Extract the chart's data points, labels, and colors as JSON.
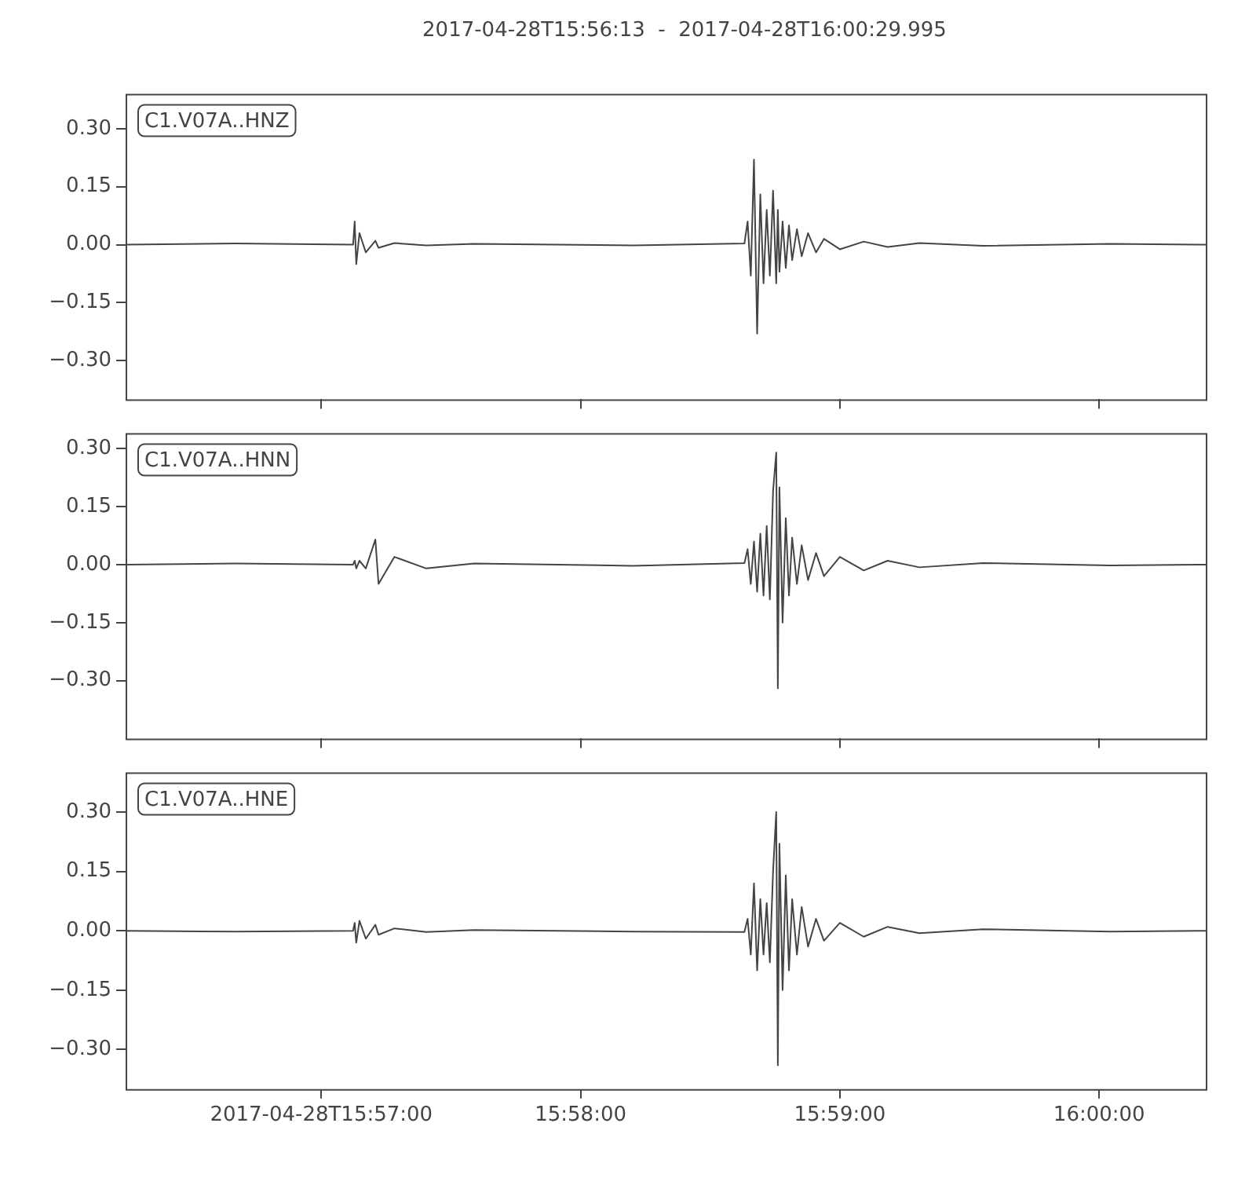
{
  "chart_data": [
    {
      "type": "line",
      "title": "2017-04-28T15:56:13  -  2017-04-28T16:00:29.995",
      "legend": "top left",
      "tick_labels": "y",
      "grid": false,
      "x": [
        15.937423,
        15.944479,
        15.952045,
        15.952147,
        15.952249,
        15.952454,
        15.952863,
        15.953476,
        15.953681,
        15.954703,
        15.956748,
        15.959816,
        15.970041,
        15.977198,
        15.977403,
        15.977607,
        15.977812,
        15.978016,
        15.978221,
        15.978425,
        15.97863,
        15.978834,
        15.979039,
        15.979243,
        15.979346,
        15.979448,
        15.979652,
        15.979857,
        15.980061,
        15.980266,
        15.980573,
        15.980879,
        15.981288,
        15.9818,
        15.982311,
        15.983333,
        15.984867,
        15.986401,
        15.988446,
        15.992536,
        16.000716,
        16.006851
      ],
      "xlim": [
        15.937423,
        16.006851
      ],
      "xticks": [
        {
          "value": 15.95,
          "label": null
        },
        {
          "value": 15.966667,
          "label": null
        },
        {
          "value": 15.983333,
          "label": null
        },
        {
          "value": 16.0,
          "label": null
        }
      ],
      "ylim": [
        -0.4,
        0.39
      ],
      "yticks": [
        {
          "value": -0.3,
          "label": "−0.30"
        },
        {
          "value": -0.15,
          "label": "−0.15"
        },
        {
          "value": 0,
          "label": "0.00"
        },
        {
          "value": 0.15,
          "label": "0.15"
        },
        {
          "value": 0.3,
          "label": "0.30"
        }
      ],
      "series": [
        {
          "name": "C1.V07A..HNZ",
          "color": "#444444",
          "values": [
            0,
            0.003,
            0,
            0.06,
            -0.05,
            0.03,
            -0.02,
            0.01,
            -0.008,
            0.004,
            -0.002,
            0.002,
            -0.002,
            0.003,
            0.06,
            -0.08,
            0.22,
            -0.23,
            0.13,
            -0.1,
            0.09,
            -0.08,
            0.14,
            -0.1,
            0.09,
            -0.07,
            0.06,
            -0.06,
            0.05,
            -0.04,
            0.04,
            -0.03,
            0.03,
            -0.02,
            0.015,
            -0.012,
            0.008,
            -0.006,
            0.004,
            -0.003,
            0.002,
            0
          ]
        }
      ]
    },
    {
      "type": "line",
      "legend": "top left",
      "tick_labels": "y",
      "grid": false,
      "x": [
        15.937423,
        15.944479,
        15.952045,
        15.952147,
        15.952249,
        15.952454,
        15.952863,
        15.953476,
        15.953681,
        15.954703,
        15.956748,
        15.959816,
        15.970041,
        15.977198,
        15.977403,
        15.977607,
        15.977812,
        15.978016,
        15.978221,
        15.978425,
        15.97863,
        15.978834,
        15.979039,
        15.979243,
        15.979346,
        15.979448,
        15.979652,
        15.979857,
        15.980061,
        15.980266,
        15.980573,
        15.980879,
        15.981288,
        15.9818,
        15.982311,
        15.983333,
        15.984867,
        15.986401,
        15.988446,
        15.992536,
        16.000716,
        16.006851
      ],
      "xlim": [
        15.937423,
        16.006851
      ],
      "xticks": [
        {
          "value": 15.95,
          "label": null
        },
        {
          "value": 15.966667,
          "label": null
        },
        {
          "value": 15.983333,
          "label": null
        },
        {
          "value": 16.0,
          "label": null
        }
      ],
      "ylim": [
        -0.45,
        0.34
      ],
      "yticks": [
        {
          "value": -0.3,
          "label": "−0.30"
        },
        {
          "value": -0.15,
          "label": "−0.15"
        },
        {
          "value": 0,
          "label": "0.00"
        },
        {
          "value": 0.15,
          "label": "0.15"
        },
        {
          "value": 0.3,
          "label": "0.30"
        }
      ],
      "series": [
        {
          "name": "C1.V07A..HNN",
          "color": "#444444",
          "values": [
            0,
            0.003,
            0,
            0.01,
            -0.01,
            0.01,
            -0.01,
            0.065,
            -0.05,
            0.02,
            -0.01,
            0.003,
            -0.003,
            0.004,
            0.04,
            -0.05,
            0.06,
            -0.07,
            0.08,
            -0.08,
            0.1,
            -0.09,
            0.19,
            0.29,
            -0.32,
            0.2,
            -0.15,
            0.12,
            -0.08,
            0.07,
            -0.05,
            0.05,
            -0.04,
            0.03,
            -0.03,
            0.02,
            -0.015,
            0.01,
            -0.007,
            0.004,
            -0.002,
            0
          ]
        }
      ]
    },
    {
      "type": "line",
      "legend": "top left",
      "grid": false,
      "x": [
        15.937423,
        15.944479,
        15.952045,
        15.952147,
        15.952249,
        15.952454,
        15.952863,
        15.953476,
        15.953681,
        15.954703,
        15.956748,
        15.959816,
        15.970041,
        15.977198,
        15.977403,
        15.977607,
        15.977812,
        15.978016,
        15.978221,
        15.978425,
        15.97863,
        15.978834,
        15.979039,
        15.979243,
        15.979346,
        15.979448,
        15.979652,
        15.979857,
        15.980061,
        15.980266,
        15.980573,
        15.980879,
        15.981288,
        15.9818,
        15.982311,
        15.983333,
        15.984867,
        15.986401,
        15.988446,
        15.992536,
        16.000716,
        16.006851
      ],
      "xlim": [
        15.937423,
        16.006851
      ],
      "xticks": [
        {
          "value": 15.95,
          "label": "2017-04-28T15:57:00"
        },
        {
          "value": 15.966667,
          "label": "15:58:00"
        },
        {
          "value": 15.983333,
          "label": "15:59:00"
        },
        {
          "value": 16.0,
          "label": "16:00:00"
        }
      ],
      "ylim": [
        -0.4,
        0.4
      ],
      "yticks": [
        {
          "value": -0.3,
          "label": "−0.30"
        },
        {
          "value": -0.15,
          "label": "−0.15"
        },
        {
          "value": 0,
          "label": "0.00"
        },
        {
          "value": 0.15,
          "label": "0.15"
        },
        {
          "value": 0.3,
          "label": "0.30"
        }
      ],
      "series": [
        {
          "name": "C1.V07A..HNE",
          "color": "#444444",
          "values": [
            0,
            -0.002,
            0,
            0.02,
            -0.03,
            0.025,
            -0.02,
            0.015,
            -0.01,
            0.006,
            -0.003,
            0.002,
            -0.002,
            -0.003,
            0.03,
            -0.06,
            0.12,
            -0.1,
            0.08,
            -0.06,
            0.07,
            -0.08,
            0.15,
            0.3,
            -0.34,
            0.22,
            -0.15,
            0.14,
            -0.1,
            0.08,
            -0.06,
            0.06,
            -0.04,
            0.03,
            -0.025,
            0.02,
            -0.015,
            0.01,
            -0.006,
            0.004,
            -0.002,
            0
          ]
        }
      ]
    }
  ]
}
